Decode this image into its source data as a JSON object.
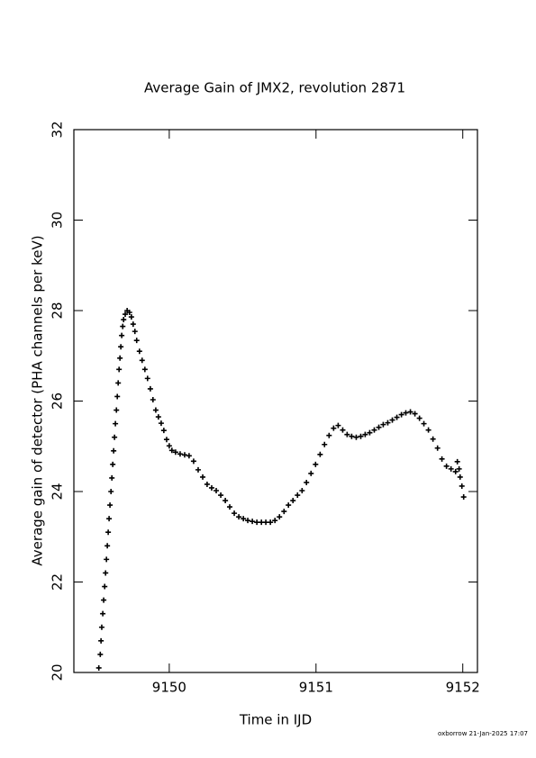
{
  "chart_data": {
    "type": "scatter",
    "title": "Average Gain of JMX2, revolution 2871",
    "x_label": "Time in IJD",
    "y_label": "Average gain of detector (PHA channels per keV)",
    "footer": "oxborrow 21-Jan-2025 17:07",
    "marker": "plus",
    "color": "#000000",
    "xlim": [
      9149.35,
      9152.1
    ],
    "xticks": [
      9150,
      9151,
      9152
    ],
    "ylim": [
      20,
      32
    ],
    "yticks": [
      20,
      22,
      24,
      26,
      28,
      30,
      32
    ],
    "x": [
      9149.52,
      9149.53,
      9149.535,
      9149.54,
      9149.547,
      9149.553,
      9149.56,
      9149.566,
      9149.572,
      9149.578,
      9149.584,
      9149.59,
      9149.596,
      9149.603,
      9149.609,
      9149.615,
      9149.621,
      9149.627,
      9149.633,
      9149.64,
      9149.646,
      9149.652,
      9149.658,
      9149.664,
      9149.67,
      9149.676,
      9149.683,
      9149.689,
      9149.7,
      9149.713,
      9149.729,
      9149.742,
      9149.754,
      9149.766,
      9149.778,
      9149.797,
      9149.815,
      9149.834,
      9149.852,
      9149.871,
      9149.889,
      9149.908,
      9149.926,
      9149.945,
      9149.963,
      9149.982,
      9150.0,
      9150.018,
      9150.043,
      9150.074,
      9150.105,
      9150.135,
      9150.166,
      9150.197,
      9150.228,
      9150.258,
      9150.289,
      9150.32,
      9150.351,
      9150.382,
      9150.412,
      9150.443,
      9150.474,
      9150.505,
      9150.535,
      9150.566,
      9150.597,
      9150.628,
      9150.658,
      9150.689,
      9150.72,
      9150.751,
      9150.782,
      9150.812,
      9150.843,
      9150.874,
      9150.905,
      9150.935,
      9150.966,
      9150.997,
      9151.028,
      9151.058,
      9151.089,
      9151.12,
      9151.151,
      9151.182,
      9151.212,
      9151.243,
      9151.274,
      9151.305,
      9151.335,
      9151.366,
      9151.397,
      9151.428,
      9151.458,
      9151.489,
      9151.52,
      9151.551,
      9151.582,
      9151.612,
      9151.643,
      9151.674,
      9151.705,
      9151.735,
      9151.766,
      9151.797,
      9151.828,
      9151.858,
      9151.889,
      9151.92,
      9151.951,
      9151.963,
      9151.975,
      9151.982,
      9151.994,
      9152.006
    ],
    "y": [
      20.1,
      20.4,
      20.7,
      21.0,
      21.3,
      21.6,
      21.9,
      22.2,
      22.5,
      22.8,
      23.1,
      23.4,
      23.7,
      24.0,
      24.3,
      24.6,
      24.9,
      25.2,
      25.5,
      25.8,
      26.1,
      26.4,
      26.7,
      26.95,
      27.2,
      27.45,
      27.65,
      27.8,
      27.92,
      28.0,
      27.96,
      27.86,
      27.7,
      27.54,
      27.34,
      27.1,
      26.9,
      26.7,
      26.5,
      26.27,
      26.03,
      25.8,
      25.65,
      25.51,
      25.35,
      25.15,
      25.01,
      24.91,
      24.87,
      24.83,
      24.81,
      24.79,
      24.67,
      24.48,
      24.32,
      24.16,
      24.08,
      24.02,
      23.92,
      23.8,
      23.66,
      23.52,
      23.44,
      23.4,
      23.36,
      23.34,
      23.32,
      23.32,
      23.32,
      23.32,
      23.36,
      23.44,
      23.56,
      23.7,
      23.8,
      23.92,
      24.02,
      24.2,
      24.4,
      24.6,
      24.82,
      25.04,
      25.24,
      25.4,
      25.46,
      25.36,
      25.26,
      25.22,
      25.2,
      25.22,
      25.26,
      25.3,
      25.36,
      25.42,
      25.48,
      25.52,
      25.58,
      25.64,
      25.7,
      25.74,
      25.76,
      25.72,
      25.62,
      25.5,
      25.36,
      25.16,
      24.96,
      24.72,
      24.56,
      24.5,
      24.44,
      24.66,
      24.5,
      24.32,
      24.12,
      23.88
    ]
  }
}
